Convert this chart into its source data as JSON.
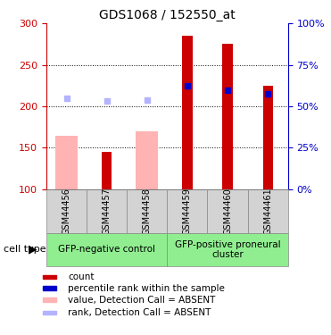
{
  "title": "GDS1068 / 152550_at",
  "samples": [
    "GSM44456",
    "GSM44457",
    "GSM44458",
    "GSM44459",
    "GSM44460",
    "GSM44461"
  ],
  "ylim_left": [
    100,
    300
  ],
  "ylim_right": [
    0,
    100
  ],
  "yticks_left": [
    100,
    150,
    200,
    250,
    300
  ],
  "yticks_right": [
    0,
    25,
    50,
    75,
    100
  ],
  "red_bars": [
    null,
    145,
    null,
    285,
    275,
    225
  ],
  "pink_bars": [
    165,
    null,
    170,
    null,
    null,
    null
  ],
  "blue_squares": [
    null,
    null,
    null,
    225,
    220,
    215
  ],
  "light_blue_squares": [
    210,
    207,
    208,
    null,
    null,
    null
  ],
  "groups": [
    {
      "label": "GFP-negative control",
      "start": 0,
      "end": 3
    },
    {
      "label": "GFP-positive proneural\ncluster",
      "start": 3,
      "end": 6
    }
  ],
  "cell_type_label": "cell type",
  "legend_items": [
    {
      "color": "#cc0000",
      "label": "count"
    },
    {
      "color": "#0000cc",
      "label": "percentile rank within the sample"
    },
    {
      "color": "#ffb3b3",
      "label": "value, Detection Call = ABSENT"
    },
    {
      "color": "#b3b3ff",
      "label": "rank, Detection Call = ABSENT"
    }
  ],
  "red_color": "#cc0000",
  "pink_color": "#ffb3b3",
  "blue_color": "#0000cc",
  "light_blue_color": "#b3b3ff",
  "left_axis_color": "#cc0000",
  "right_axis_color": "#0000cc",
  "gray_bg": "#d3d3d3",
  "green_bg": "#90ee90"
}
